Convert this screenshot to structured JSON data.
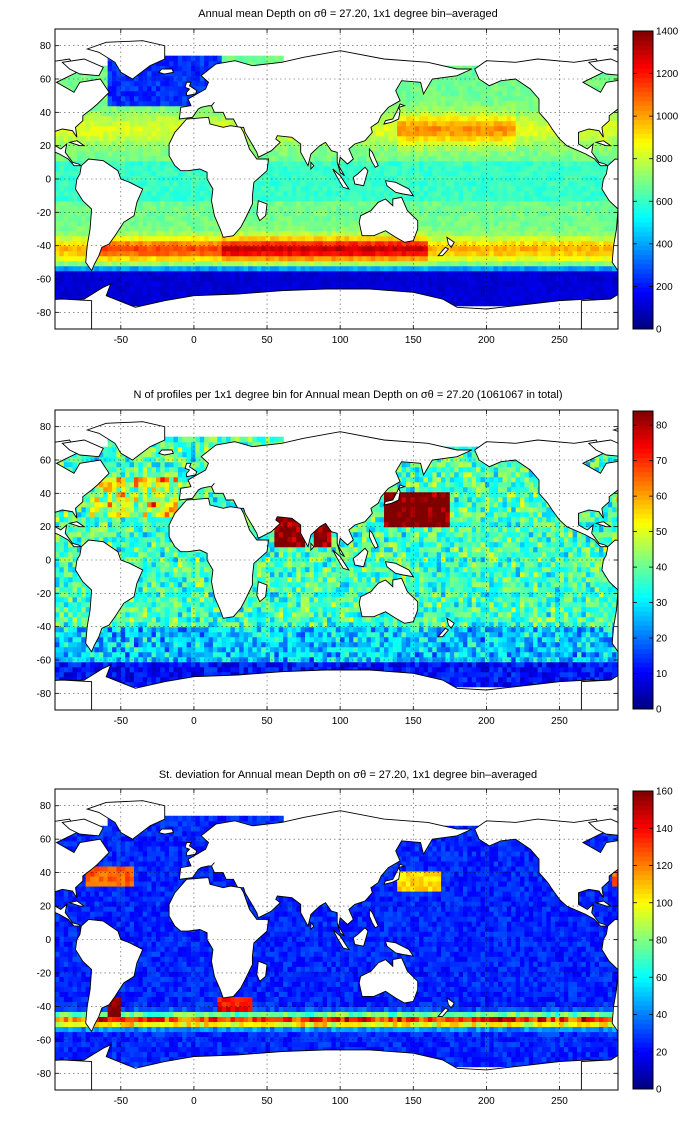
{
  "chart_data": [
    {
      "type": "heatmap",
      "title": "Annual mean Depth on σθ = 27.20, 1x1 degree bin–averaged",
      "xlim": [
        -95,
        290
      ],
      "ylim": [
        -90,
        90
      ],
      "xticks": [
        -50,
        0,
        50,
        100,
        150,
        200,
        250
      ],
      "yticks": [
        -80,
        -60,
        -40,
        -20,
        0,
        20,
        40,
        60,
        80
      ],
      "colorbar": {
        "min": 0,
        "max": 1400,
        "ticks": [
          0,
          200,
          400,
          600,
          800,
          1000,
          1200,
          1400
        ]
      },
      "colormap": "jet",
      "grid": true,
      "field_features": {
        "base": 650,
        "tropics_low_lat": 580,
        "subtropical_gyre_peak": 1150,
        "southern_band_peak_lat": -42,
        "southern_band_peak": 1300,
        "antarctic_south_of_lat": -55,
        "antarctic_value": 120,
        "north_atlantic_subpolar": 150,
        "north_pacific_band_lat": 30,
        "north_pacific_band": 1050
      }
    },
    {
      "type": "heatmap",
      "title": "N of profiles per 1x1 degree bin for Annual mean Depth on σθ = 27.20 (1061067 in total)",
      "xlim": [
        -95,
        290
      ],
      "ylim": [
        -90,
        90
      ],
      "xticks": [
        -50,
        0,
        50,
        100,
        150,
        200,
        250
      ],
      "yticks": [
        -80,
        -60,
        -40,
        -20,
        0,
        20,
        40,
        60,
        80
      ],
      "colorbar": {
        "min": 0,
        "max": 84,
        "ticks": [
          0,
          10,
          20,
          30,
          40,
          50,
          60,
          70,
          80
        ]
      },
      "colormap": "jet",
      "grid": true,
      "total_profiles": 1061067,
      "field_features": {
        "base": 28,
        "kuroshio_region_value": 84,
        "north_atlantic_value": 65,
        "arabian_sea_value": 84,
        "bay_of_bengal_value": 84,
        "southern_ocean_value": 12
      }
    },
    {
      "type": "heatmap",
      "title": "St. deviation for Annual mean Depth on σθ = 27.20, 1x1 degree bin–averaged",
      "xlim": [
        -95,
        290
      ],
      "ylim": [
        -90,
        90
      ],
      "xticks": [
        -50,
        0,
        50,
        100,
        150,
        200,
        250
      ],
      "yticks": [
        -80,
        -60,
        -40,
        -20,
        0,
        20,
        40,
        60,
        80
      ],
      "colorbar": {
        "min": 0,
        "max": 160,
        "ticks": [
          0,
          20,
          40,
          60,
          80,
          100,
          120,
          140,
          160
        ]
      },
      "colormap": "jet",
      "grid": true,
      "field_features": {
        "base": 22,
        "gulf_stream_value": 140,
        "kuroshio_value": 110,
        "antarctic_circumpolar_value": 150,
        "agulhas_value": 140,
        "brazil_malvinas_value": 160
      }
    }
  ]
}
